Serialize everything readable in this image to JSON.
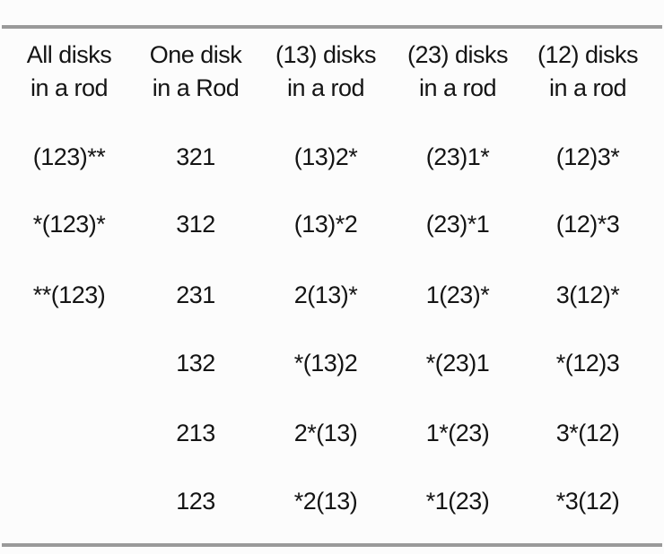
{
  "table": {
    "description": "Tower of Hanoi rod-state enumeration table",
    "columns": [
      {
        "header_line1": "All disks",
        "header_line2": "in a rod"
      },
      {
        "header_line1": "One disk",
        "header_line2": "in a Rod"
      },
      {
        "header_line1": "(13) disks",
        "header_line2": "in a rod"
      },
      {
        "header_line1": "(23) disks",
        "header_line2": "in a rod"
      },
      {
        "header_line1": "(12) disks",
        "header_line2": "in a rod"
      }
    ],
    "rows": [
      [
        "(123)**",
        "321",
        "(13)2*",
        "(23)1*",
        "(12)3*"
      ],
      [
        "*(123)*",
        "312",
        "(13)*2",
        "(23)*1",
        "(12)*3"
      ],
      [
        "**(123)",
        "231",
        "2(13)*",
        "1(23)*",
        "3(12)*"
      ],
      [
        "",
        "132",
        "*(13)2",
        "*(23)1",
        "*(12)3"
      ],
      [
        "",
        "213",
        "2*(13)",
        "1*(23)",
        "3*(12)"
      ],
      [
        "",
        "123",
        "*2(13)",
        "*1(23)",
        "*3(12)"
      ]
    ]
  },
  "colors": {
    "rule": "#9a9a9a",
    "text": "#141414",
    "background": "#fcfcfc"
  }
}
